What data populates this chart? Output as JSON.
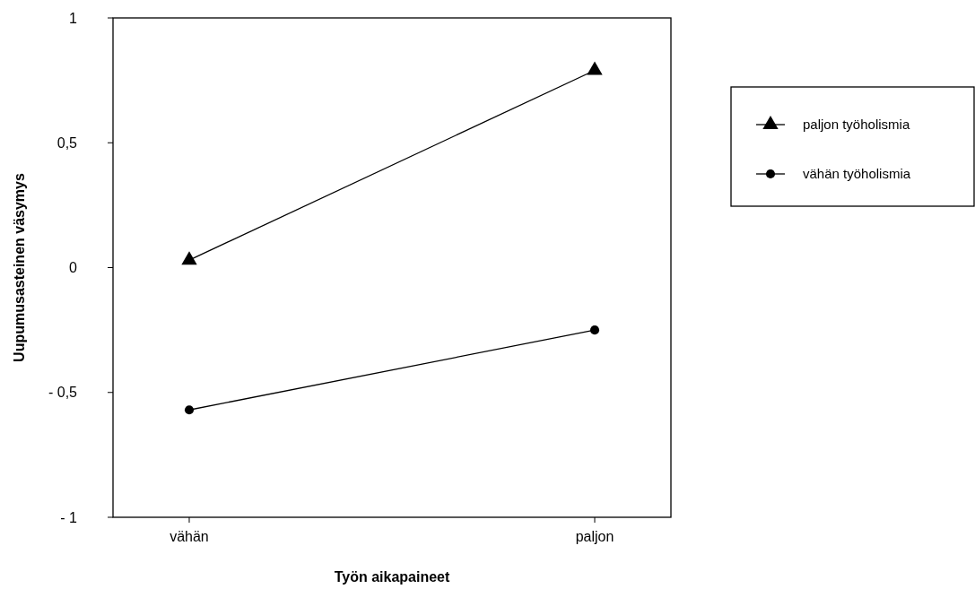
{
  "chart_data": {
    "type": "line",
    "xlabel": "Työn aikapaineet",
    "ylabel": "Uupumusasteinen väsymys",
    "categories": [
      "vähän",
      "paljon"
    ],
    "series": [
      {
        "name": "paljon työholismia",
        "color": "#000000",
        "marker": "triangle",
        "values": [
          0.03,
          0.79
        ]
      },
      {
        "name": "vähän työholismia",
        "color": "#000000",
        "marker": "circle",
        "values": [
          -0.57,
          -0.25
        ]
      }
    ],
    "ylim": [
      -1,
      1
    ],
    "yticks": [
      {
        "value": -1,
        "label": "- 1"
      },
      {
        "value": -0.5,
        "label": "- 0,5"
      },
      0,
      {
        "value": 0.5,
        "label": "0,5"
      },
      1
    ],
    "grid": false,
    "legend": "right",
    "line_style": "solid"
  }
}
